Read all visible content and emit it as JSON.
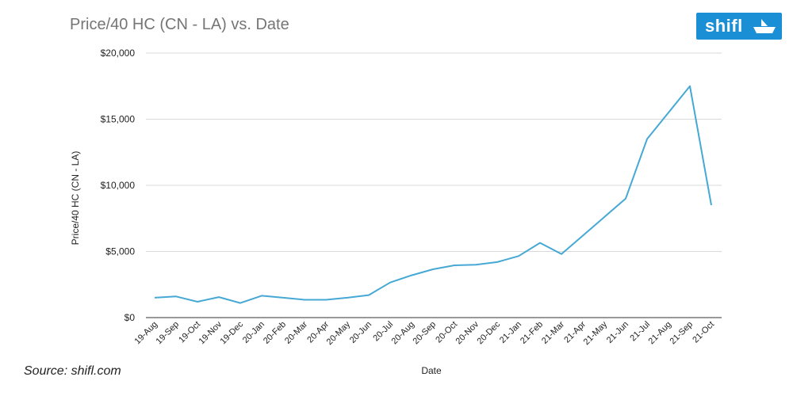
{
  "title": "Price/40 HC (CN - LA) vs. Date",
  "logo_text": "shifl",
  "source": "Source: shifl.com",
  "colors": {
    "line": "#46a8d4",
    "grid": "#d9d9d9",
    "logo": "#1a8fd6"
  },
  "chart_data": {
    "type": "line",
    "title": "Price/40 HC (CN - LA) vs. Date",
    "xlabel": "Date",
    "ylabel": "Price/40 HC (CN - LA)",
    "ylim": [
      0,
      20000
    ],
    "yticks": [
      0,
      5000,
      10000,
      15000,
      20000
    ],
    "ytick_labels": [
      "$0",
      "$5,000",
      "$10,000",
      "$15,000",
      "$20,000"
    ],
    "grid": true,
    "legend": "none",
    "categories": [
      "19-Aug",
      "19-Sep",
      "19-Oct",
      "19-Nov",
      "19-Dec",
      "20-Jan",
      "20-Feb",
      "20-Mar",
      "20-Apr",
      "20-May",
      "20-Jun",
      "20-Jul",
      "20-Aug",
      "20-Sep",
      "20-Oct",
      "20-Nov",
      "20-Dec",
      "21-Jan",
      "21-Feb",
      "21-Mar",
      "21-Apr",
      "21-May",
      "21-Jun",
      "21-Jul",
      "21-Aug",
      "21-Sep",
      "21-Oct"
    ],
    "values": [
      1500,
      1600,
      1200,
      1550,
      1100,
      1650,
      1500,
      1350,
      1350,
      1500,
      1700,
      2650,
      3200,
      3650,
      3950,
      4000,
      4200,
      4650,
      5650,
      4800,
      6200,
      7600,
      9000,
      13500,
      15500,
      17500,
      8500
    ]
  }
}
